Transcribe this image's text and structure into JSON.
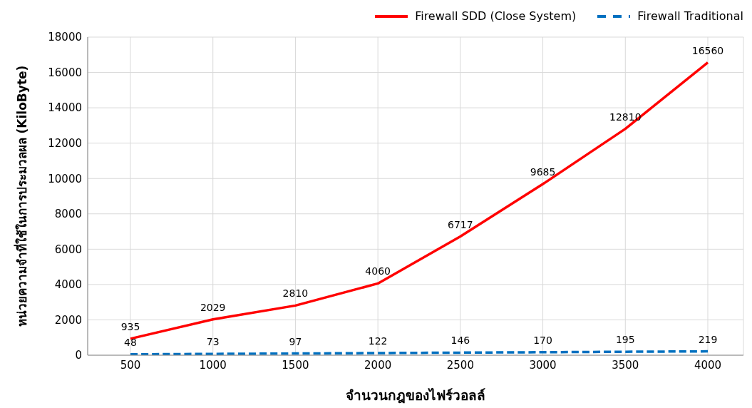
{
  "chart_data": {
    "type": "line",
    "xlabel": "จำนวนกฎของไฟร์วอลล์",
    "ylabel": "หน่วยความจำที่ใช้ในการประมวลผล (KiloByte)",
    "categories": [
      "500",
      "1000",
      "1500",
      "2000",
      "2500",
      "3000",
      "3500",
      "4000"
    ],
    "series": [
      {
        "name": "Firewall SDD (Close System)",
        "color": "#ff0000",
        "line_style": "solid",
        "values": [
          935,
          2029,
          2810,
          4060,
          6717,
          9685,
          12810,
          16560
        ]
      },
      {
        "name": "Firewall Traditional",
        "color": "#0070c0",
        "line_style": "dashed",
        "values": [
          48,
          73,
          97,
          122,
          146,
          170,
          195,
          219
        ]
      }
    ],
    "ylim": [
      0,
      18000
    ],
    "yticks": [
      0,
      2000,
      4000,
      6000,
      8000,
      10000,
      12000,
      14000,
      16000,
      18000
    ],
    "grid": true,
    "legend": "top right",
    "data_labels": true,
    "marker": "none"
  }
}
